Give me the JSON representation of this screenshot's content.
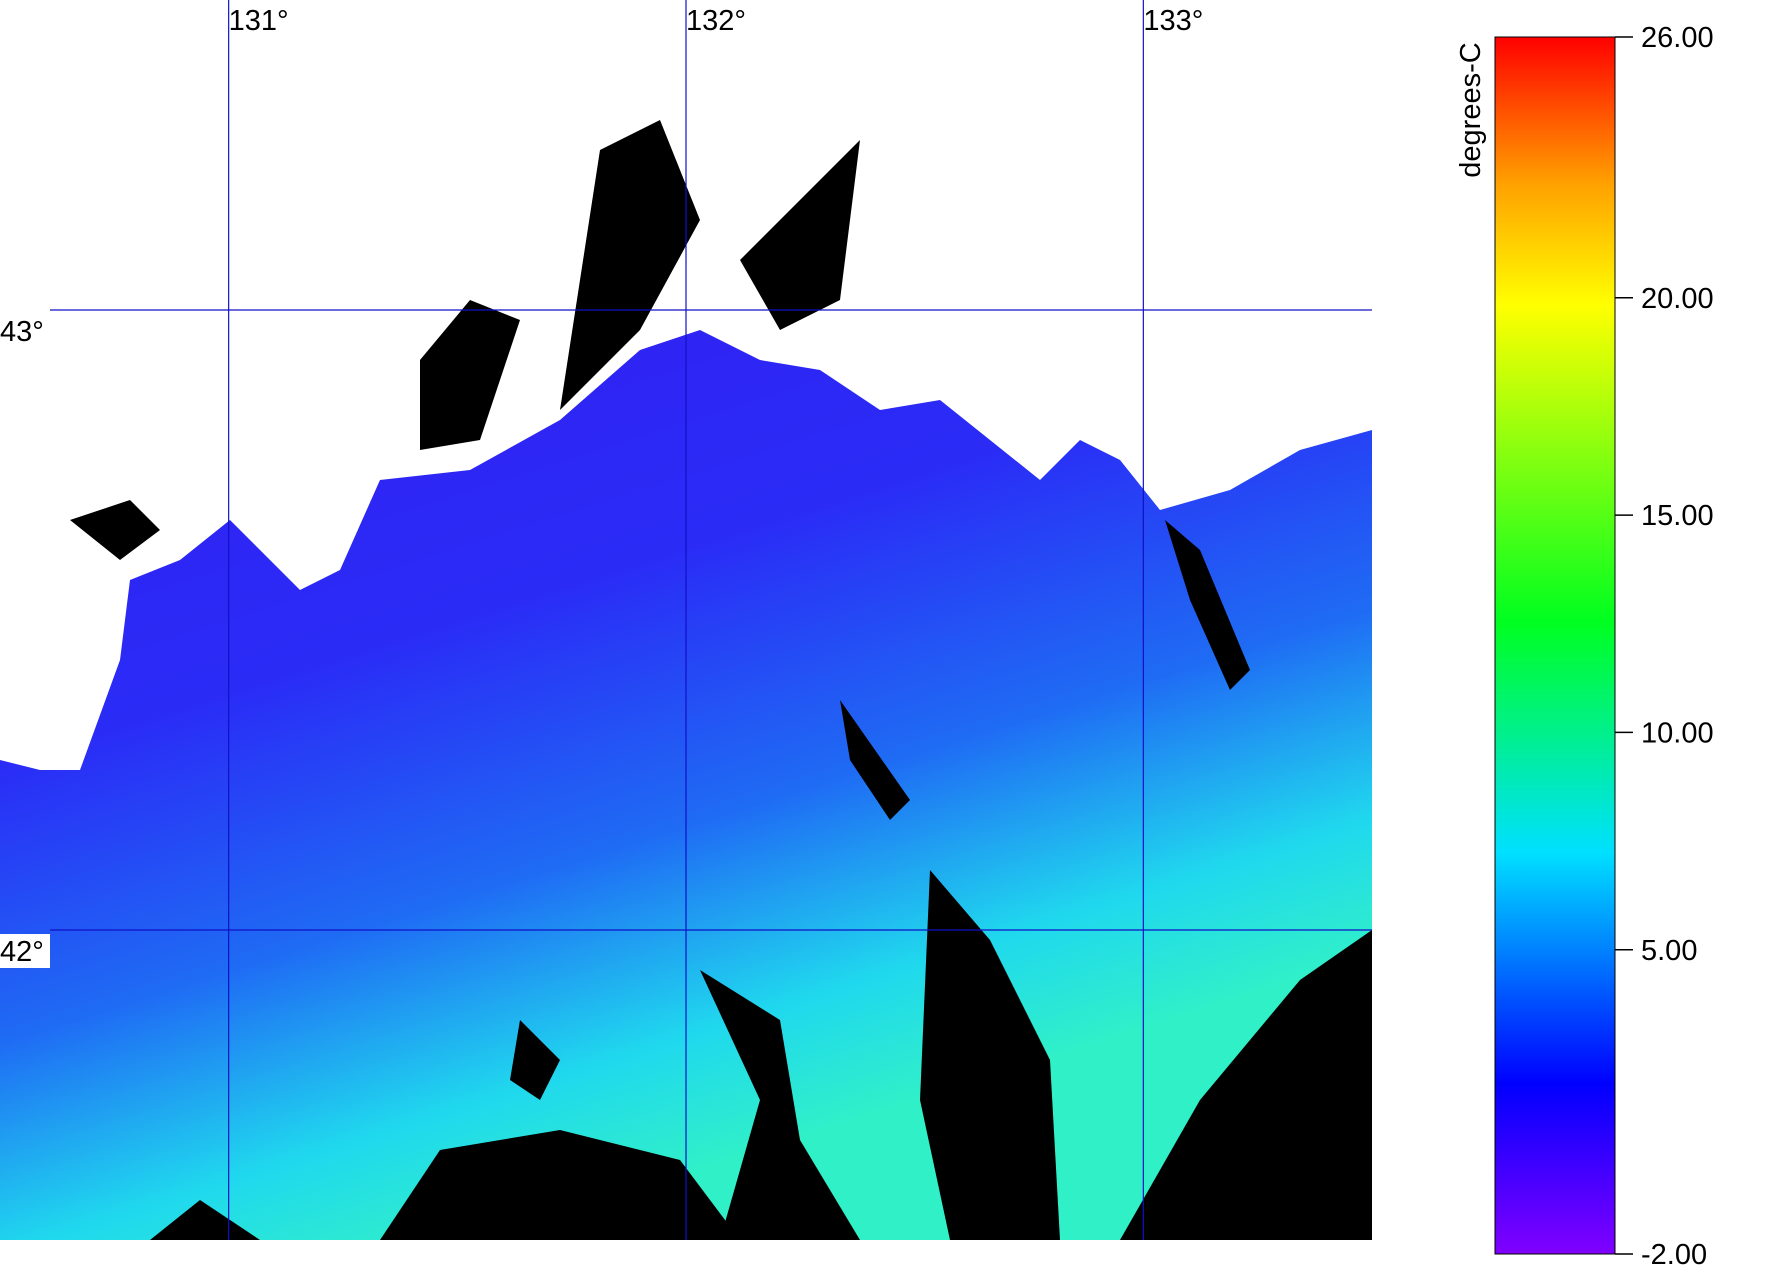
{
  "map": {
    "xlim": [
      130.5,
      133.5
    ],
    "ylim": [
      41.5,
      43.5
    ],
    "lon_ticks": [
      {
        "value": 131,
        "label": "131°"
      },
      {
        "value": 132,
        "label": "132°"
      },
      {
        "value": 133,
        "label": "133°"
      }
    ],
    "lat_ticks": [
      {
        "value": 43,
        "label": "43°"
      },
      {
        "value": 42,
        "label": "42°"
      }
    ]
  },
  "colorbar": {
    "label": "degrees-C",
    "range": [
      -2,
      26
    ],
    "ticks": [
      {
        "value": 26,
        "label": "26.00"
      },
      {
        "value": 20,
        "label": "20.00"
      },
      {
        "value": 15,
        "label": "15.00"
      },
      {
        "value": 10,
        "label": "10.00"
      },
      {
        "value": 5,
        "label": "5.00"
      },
      {
        "value": -2,
        "label": "-2.00"
      }
    ]
  }
}
